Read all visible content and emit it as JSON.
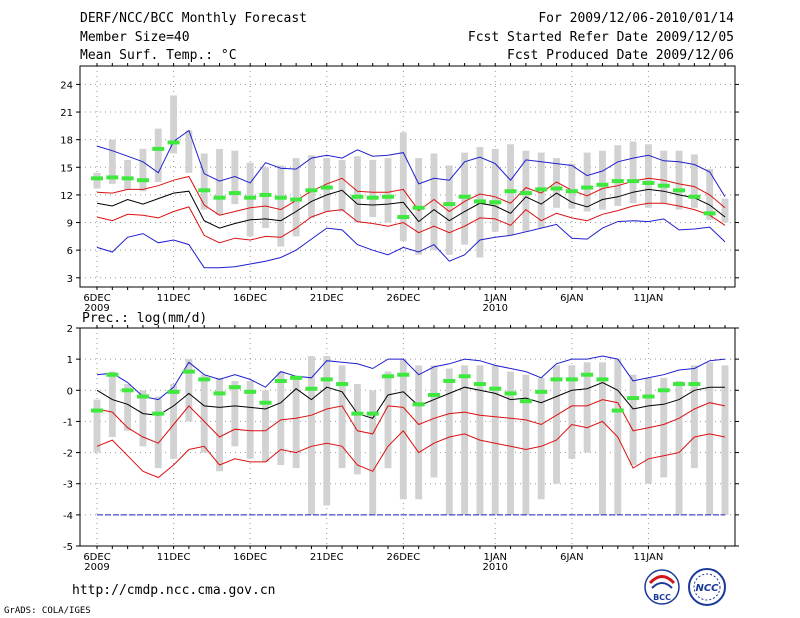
{
  "header": {
    "title": "DERF/NCC/BCC Monthly Forecast",
    "member": "Member Size=40",
    "variable": "Mean Surf. Temp.: °C",
    "period": "For 2009/12/06-2010/01/14",
    "started": "Fcst Started Refer Date 2009/12/05",
    "produced": "Fcst Produced Date 2009/12/06"
  },
  "footer": {
    "url": "http://cmdp.ncc.cma.gov.cn",
    "credit": "GrADS: COLA/IGES"
  },
  "logos": {
    "left": "BCC",
    "right": "NCC"
  },
  "colors": {
    "max": "#1f1fd0",
    "min": "#1f1fd0",
    "pct": "#dd1010",
    "median": "#000000",
    "box": "#d2d2d2",
    "obs": "#3ee83e"
  },
  "chart_data": [
    {
      "type": "line",
      "title": "Mean Surf. Temp.: °C",
      "ylim": [
        2,
        26
      ],
      "yticks": [
        3,
        6,
        9,
        12,
        15,
        18,
        21,
        24
      ],
      "x_ticks": [
        {
          "i": 0,
          "label": "6DEC",
          "sub": "2009"
        },
        {
          "i": 5,
          "label": "11DEC"
        },
        {
          "i": 10,
          "label": "16DEC"
        },
        {
          "i": 15,
          "label": "21DEC"
        },
        {
          "i": 20,
          "label": "26DEC"
        },
        {
          "i": 26,
          "label": "1JAN",
          "sub": "2010"
        },
        {
          "i": 31,
          "label": "6JAN"
        },
        {
          "i": 36,
          "label": "11JAN"
        }
      ],
      "series": [
        {
          "name": "max",
          "values": [
            17.3,
            16.8,
            16.2,
            15.6,
            14.4,
            17.8,
            19.0,
            14.3,
            13.5,
            14.0,
            13.3,
            15.5,
            14.9,
            14.8,
            16.0,
            16.3,
            16.0,
            16.9,
            16.2,
            16.3,
            16.6,
            13.2,
            13.8,
            13.6,
            15.6,
            16.1,
            15.4,
            13.6,
            15.8,
            15.6,
            15.4,
            15.2,
            14.1,
            14.6,
            15.6,
            16.0,
            16.3,
            15.7,
            15.6,
            15.3,
            14.5,
            11.8
          ]
        },
        {
          "name": "p75",
          "values": [
            12.3,
            12.2,
            12.6,
            12.6,
            13.0,
            13.6,
            14.0,
            10.9,
            9.8,
            10.2,
            10.6,
            10.8,
            10.4,
            11.4,
            12.4,
            13.2,
            13.8,
            12.4,
            12.3,
            12.3,
            12.6,
            10.3,
            11.5,
            10.2,
            11.3,
            12.1,
            11.8,
            11.1,
            12.8,
            12.2,
            13.4,
            12.5,
            11.9,
            12.7,
            13.0,
            13.5,
            13.8,
            13.6,
            13.2,
            12.9,
            12.0,
            10.6
          ]
        },
        {
          "name": "median",
          "values": [
            11.1,
            10.8,
            11.5,
            11.0,
            11.6,
            12.2,
            12.4,
            9.2,
            8.4,
            8.9,
            9.3,
            9.4,
            9.2,
            10.2,
            11.3,
            12.0,
            12.5,
            11.0,
            10.9,
            11.0,
            11.2,
            9.1,
            10.4,
            9.2,
            10.2,
            11.1,
            10.8,
            10.0,
            11.8,
            11.0,
            12.2,
            11.2,
            10.7,
            11.5,
            11.8,
            12.3,
            12.6,
            12.4,
            12.0,
            11.7,
            10.9,
            9.6
          ]
        },
        {
          "name": "p25",
          "values": [
            9.6,
            9.2,
            9.9,
            9.8,
            9.5,
            10.2,
            10.7,
            7.6,
            6.8,
            7.3,
            7.1,
            7.5,
            7.4,
            8.4,
            9.6,
            10.2,
            10.4,
            9.1,
            8.9,
            8.6,
            9.0,
            7.9,
            8.6,
            7.9,
            8.6,
            9.5,
            9.4,
            8.7,
            10.4,
            9.2,
            10.0,
            9.5,
            9.2,
            9.9,
            10.3,
            10.8,
            11.1,
            11.1,
            10.8,
            10.4,
            9.8,
            8.7
          ]
        },
        {
          "name": "min",
          "values": [
            6.3,
            5.8,
            7.4,
            7.8,
            6.8,
            7.1,
            6.6,
            4.1,
            4.1,
            4.2,
            4.5,
            4.8,
            5.2,
            6.0,
            7.2,
            8.4,
            8.2,
            6.6,
            6.0,
            5.5,
            6.3,
            5.8,
            6.6,
            4.8,
            5.5,
            7.1,
            7.4,
            7.6,
            8.0,
            8.4,
            8.8,
            7.3,
            7.2,
            8.4,
            9.1,
            9.2,
            9.1,
            9.4,
            8.2,
            8.3,
            8.5,
            6.9
          ]
        },
        {
          "name": "observed",
          "values": [
            13.8,
            13.9,
            13.8,
            13.6,
            17.0,
            17.7,
            null,
            12.5,
            11.7,
            12.2,
            11.7,
            12.0,
            11.7,
            11.5,
            12.5,
            12.8,
            null,
            11.8,
            11.7,
            11.8,
            9.6,
            10.6,
            null,
            11.0,
            11.8,
            11.3,
            11.2,
            12.4,
            12.2,
            12.6,
            12.7,
            12.4,
            12.8,
            13.1,
            13.5,
            13.5,
            13.3,
            13.0,
            12.5,
            11.8,
            10.0,
            null
          ]
        }
      ],
      "box_ranges": [
        [
          12.7,
          14.4
        ],
        [
          13.2,
          18.0
        ],
        [
          12.6,
          15.8
        ],
        [
          12.4,
          17.0
        ],
        [
          13.4,
          19.2
        ],
        [
          16.5,
          22.8
        ],
        [
          14.4,
          19.0
        ],
        [
          10.4,
          16.5
        ],
        [
          9.8,
          17.0
        ],
        [
          11.0,
          16.8
        ],
        [
          7.5,
          15.5
        ],
        [
          8.4,
          15.0
        ],
        [
          6.4,
          15.2
        ],
        [
          7.5,
          16.0
        ],
        [
          9.5,
          16.3
        ],
        [
          10.2,
          16.0
        ],
        [
          10.2,
          15.8
        ],
        [
          9.0,
          16.2
        ],
        [
          9.6,
          15.8
        ],
        [
          9.0,
          16.0
        ],
        [
          7.0,
          18.8
        ],
        [
          5.5,
          16.0
        ],
        [
          6.0,
          16.5
        ],
        [
          5.5,
          15.2
        ],
        [
          6.6,
          16.6
        ],
        [
          5.2,
          17.2
        ],
        [
          8.0,
          17.0
        ],
        [
          7.6,
          17.5
        ],
        [
          8.0,
          16.8
        ],
        [
          8.4,
          16.6
        ],
        [
          10.6,
          16.0
        ],
        [
          10.5,
          15.4
        ],
        [
          10.2,
          16.6
        ],
        [
          10.4,
          16.8
        ],
        [
          10.8,
          17.4
        ],
        [
          11.1,
          17.8
        ],
        [
          10.6,
          17.5
        ],
        [
          11.1,
          16.8
        ],
        [
          10.4,
          16.8
        ],
        [
          10.6,
          16.4
        ],
        [
          9.3,
          14.8
        ],
        [
          9.0,
          11.6
        ]
      ]
    },
    {
      "type": "line",
      "title": "Prec.: log(mm/d)",
      "ylim": [
        -5,
        2
      ],
      "yticks": [
        -5,
        -4,
        -3,
        -2,
        -1,
        0,
        1,
        2
      ],
      "x_ticks": [
        {
          "i": 0,
          "label": "6DEC",
          "sub": "2009"
        },
        {
          "i": 5,
          "label": "11DEC"
        },
        {
          "i": 10,
          "label": "16DEC"
        },
        {
          "i": 15,
          "label": "21DEC"
        },
        {
          "i": 20,
          "label": "26DEC"
        },
        {
          "i": 26,
          "label": "1JAN",
          "sub": "2010"
        },
        {
          "i": 31,
          "label": "6JAN"
        },
        {
          "i": 36,
          "label": "11JAN"
        }
      ],
      "series": [
        {
          "name": "max",
          "values": [
            0.5,
            0.55,
            0.25,
            -0.2,
            -0.3,
            0.1,
            0.9,
            0.5,
            0.35,
            0.5,
            0.35,
            0.1,
            0.6,
            0.45,
            0.4,
            0.95,
            0.9,
            0.85,
            0.7,
            1.0,
            1.0,
            0.5,
            0.75,
            0.85,
            1.0,
            0.95,
            0.8,
            0.7,
            0.6,
            0.4,
            0.85,
            1.0,
            1.0,
            1.1,
            1.0,
            0.3,
            0.4,
            0.5,
            0.65,
            0.7,
            0.95,
            1.0
          ]
        },
        {
          "name": "median",
          "values": [
            0.0,
            -0.3,
            -0.45,
            -0.75,
            -0.8,
            -0.5,
            -0.1,
            -0.5,
            -0.55,
            -0.5,
            -0.55,
            -0.6,
            -0.4,
            0.05,
            -0.3,
            0.1,
            -0.05,
            -0.75,
            -0.9,
            -0.15,
            -0.05,
            -0.5,
            -0.3,
            -0.1,
            0.1,
            0.0,
            -0.1,
            -0.3,
            -0.25,
            -0.4,
            -0.2,
            0.0,
            0.05,
            0.25,
            0.0,
            -0.6,
            -0.5,
            -0.45,
            -0.3,
            0.0,
            0.1,
            0.1
          ]
        },
        {
          "name": "p25",
          "values": [
            -0.6,
            -0.7,
            -1.2,
            -1.5,
            -1.7,
            -1.1,
            -0.5,
            -1.0,
            -1.5,
            -1.25,
            -1.3,
            -1.3,
            -0.95,
            -0.9,
            -0.8,
            -0.6,
            -0.5,
            -1.3,
            -1.4,
            -0.5,
            -0.55,
            -1.1,
            -0.9,
            -0.75,
            -0.7,
            -0.8,
            -0.85,
            -0.9,
            -0.95,
            -1.1,
            -0.8,
            -0.5,
            -0.5,
            -0.3,
            -0.4,
            -1.3,
            -1.2,
            -1.1,
            -0.9,
            -0.6,
            -0.4,
            -0.5
          ]
        },
        {
          "name": "p10",
          "values": [
            -1.8,
            -1.6,
            -2.1,
            -2.6,
            -2.8,
            -2.4,
            -1.9,
            -1.8,
            -2.4,
            -2.2,
            -2.3,
            -2.3,
            -1.9,
            -2.0,
            -1.8,
            -1.7,
            -1.8,
            -2.4,
            -2.6,
            -1.8,
            -1.3,
            -2.0,
            -1.7,
            -1.5,
            -1.4,
            -1.6,
            -1.7,
            -1.8,
            -1.9,
            -1.8,
            -1.6,
            -1.1,
            -1.2,
            -1.0,
            -1.5,
            -2.5,
            -2.2,
            -2.1,
            -2.0,
            -1.5,
            -1.4,
            -1.5
          ]
        },
        {
          "name": "min",
          "values": [
            -4,
            -4,
            -4,
            -4,
            -4,
            -4,
            -4,
            -4,
            -4,
            -4,
            -4,
            -4,
            -4,
            -4,
            -4,
            -4,
            -4,
            -4,
            -4,
            -4,
            -4,
            -4,
            -4,
            -4,
            -4,
            -4,
            -4,
            -4,
            -4,
            -4,
            -4,
            -4,
            -4,
            -4,
            -4,
            -4,
            -4,
            -4,
            -4,
            -4,
            -4,
            -4
          ]
        },
        {
          "name": "observed",
          "values": [
            -0.65,
            0.5,
            0.0,
            -0.2,
            -0.75,
            -0.05,
            0.6,
            0.35,
            -0.1,
            0.1,
            -0.05,
            -0.4,
            0.3,
            0.4,
            0.05,
            0.35,
            0.2,
            -0.75,
            -0.75,
            0.45,
            0.5,
            -0.45,
            -0.15,
            0.3,
            0.45,
            0.2,
            0.05,
            -0.1,
            -0.35,
            -0.05,
            0.35,
            0.35,
            0.5,
            0.35,
            -0.65,
            -0.25,
            -0.2,
            0.0,
            0.2,
            0.2,
            null,
            null
          ]
        }
      ],
      "box_ranges": [
        [
          -2.0,
          -0.3
        ],
        [
          -1.5,
          0.6
        ],
        [
          -1.3,
          0.2
        ],
        [
          -1.8,
          0.0
        ],
        [
          -2.5,
          -0.2
        ],
        [
          -2.2,
          0.2
        ],
        [
          -1.0,
          1.0
        ],
        [
          -2.0,
          0.5
        ],
        [
          -2.6,
          0.4
        ],
        [
          -1.8,
          0.3
        ],
        [
          -2.2,
          0.3
        ],
        [
          -2.3,
          0.0
        ],
        [
          -2.4,
          0.6
        ],
        [
          -2.5,
          0.4
        ],
        [
          -4.0,
          1.1
        ],
        [
          -3.7,
          1.1
        ],
        [
          -2.5,
          0.8
        ],
        [
          -2.7,
          0.2
        ],
        [
          -4.0,
          0.0
        ],
        [
          -2.5,
          0.6
        ],
        [
          -3.5,
          1.0
        ],
        [
          -3.5,
          0.8
        ],
        [
          -2.8,
          0.8
        ],
        [
          -4.0,
          0.7
        ],
        [
          -4.0,
          0.8
        ],
        [
          -4.0,
          0.8
        ],
        [
          -4.0,
          0.8
        ],
        [
          -4.0,
          0.6
        ],
        [
          -4.0,
          0.5
        ],
        [
          -3.5,
          0.4
        ],
        [
          -3.0,
          0.8
        ],
        [
          -2.2,
          0.8
        ],
        [
          -2.0,
          0.9
        ],
        [
          -4.0,
          0.9
        ],
        [
          -4.0,
          1.0
        ],
        [
          -2.4,
          0.5
        ],
        [
          -3.0,
          0.4
        ],
        [
          -2.8,
          0.4
        ],
        [
          -4.0,
          0.3
        ],
        [
          -2.5,
          0.8
        ],
        [
          -4.0,
          0.9
        ],
        [
          -4.0,
          0.8
        ]
      ]
    }
  ]
}
